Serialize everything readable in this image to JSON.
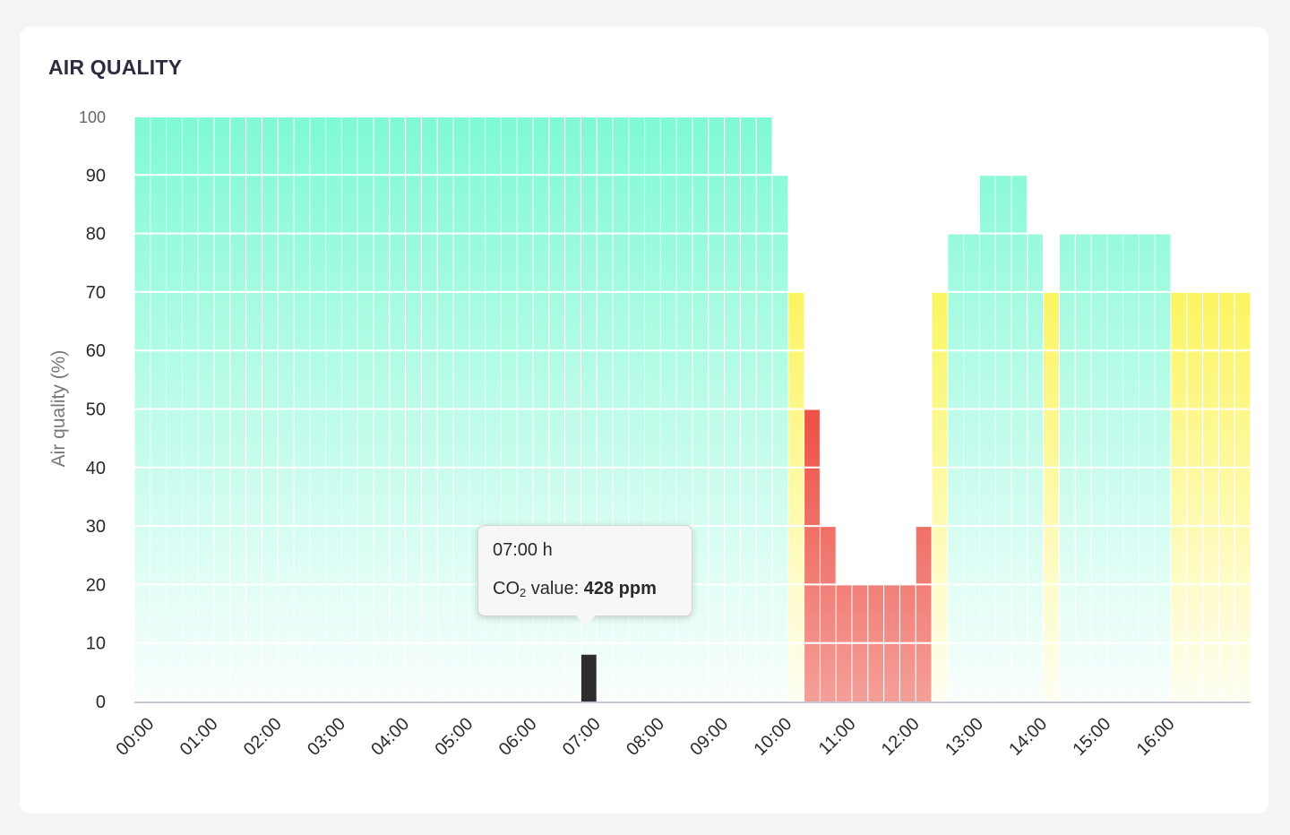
{
  "card": {
    "title": "AIR QUALITY"
  },
  "chart_data": {
    "type": "bar",
    "title": "",
    "xlabel": "",
    "ylabel": "Air quality (%)",
    "ylim": [
      0,
      100
    ],
    "yticks": [
      0,
      10,
      20,
      30,
      40,
      50,
      60,
      70,
      80,
      90,
      100
    ],
    "xtick_labels": [
      "00:00",
      "01:00",
      "02:00",
      "03:00",
      "04:00",
      "05:00",
      "06:00",
      "07:00",
      "08:00",
      "09:00",
      "10:00",
      "11:00",
      "12:00",
      "13:00",
      "14:00",
      "15:00",
      "16:00"
    ],
    "bars_per_hour": 4,
    "values": [
      100,
      100,
      100,
      100,
      100,
      100,
      100,
      100,
      100,
      100,
      100,
      100,
      100,
      100,
      100,
      100,
      100,
      100,
      100,
      100,
      100,
      100,
      100,
      100,
      100,
      100,
      100,
      100,
      100,
      100,
      100,
      100,
      100,
      100,
      100,
      100,
      100,
      100,
      100,
      100,
      90,
      70,
      50,
      30,
      20,
      20,
      20,
      20,
      20,
      30,
      70,
      80,
      80,
      90,
      90,
      90,
      80,
      70,
      80,
      80,
      80,
      80,
      80,
      80,
      80,
      70,
      70,
      70,
      70,
      70
    ],
    "selected_index": 28,
    "colors": {
      "good": "#7ff9d4",
      "moderate": "#fbf560",
      "poor": "#ec5045",
      "selected": "#2d2d2d",
      "axis": "#c8c8d8"
    },
    "tooltip": {
      "time": "07:00 h",
      "label_prefix": "CO",
      "label_sub": "2",
      "label_suffix": " value: ",
      "value": "428 ppm"
    }
  }
}
